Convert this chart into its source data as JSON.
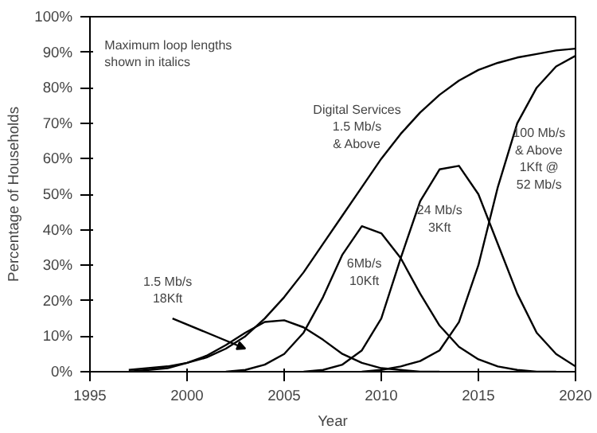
{
  "chart_data": {
    "type": "line",
    "xlabel": "Year",
    "ylabel": "Percentage of Households",
    "xlim": [
      1995,
      2020
    ],
    "ylim": [
      0,
      100
    ],
    "xticks": [
      1995,
      2000,
      2005,
      2010,
      2015,
      2020
    ],
    "yticks": [
      {
        "value": 0,
        "label": "0%"
      },
      {
        "value": 10,
        "label": "10%"
      },
      {
        "value": 20,
        "label": "20%"
      },
      {
        "value": 30,
        "label": "30%"
      },
      {
        "value": 40,
        "label": "40%"
      },
      {
        "value": 50,
        "label": "50%"
      },
      {
        "value": 60,
        "label": "60%"
      },
      {
        "value": 70,
        "label": "70%"
      },
      {
        "value": 80,
        "label": "80%"
      },
      {
        "value": 90,
        "label": "90%"
      },
      {
        "value": 100,
        "label": "100%"
      }
    ],
    "grid": false,
    "marker": "none",
    "line_style": "solid",
    "series": [
      {
        "color": "#000000",
        "x": [
          1997,
          1998,
          1999,
          2000,
          2001,
          2002,
          2003,
          2004,
          2005,
          2006,
          2007,
          2008,
          2009,
          2010,
          2011,
          2012,
          2013,
          2014,
          2015,
          2016,
          2017,
          2018,
          2019,
          2020
        ],
        "values": [
          0.5,
          1,
          1.5,
          2.5,
          4,
          6.5,
          10,
          15,
          21,
          28,
          36,
          44,
          52,
          60,
          67,
          73,
          78,
          82,
          85,
          87,
          88.5,
          89.5,
          90.5,
          91
        ]
      },
      {
        "color": "#000000",
        "x": [
          1997,
          1998,
          1999,
          2000,
          2001,
          2002,
          2003,
          2004,
          2005,
          2006,
          2007,
          2008,
          2009,
          2010,
          2011,
          2012,
          2013
        ],
        "values": [
          0,
          0.5,
          1,
          2.5,
          4.5,
          7.5,
          11,
          14,
          14.5,
          12.5,
          9,
          5,
          2.5,
          1,
          0.5,
          0,
          0
        ]
      },
      {
        "color": "#000000",
        "x": [
          2002,
          2003,
          2004,
          2005,
          2006,
          2007,
          2008,
          2009,
          2010,
          2011,
          2012,
          2013,
          2014,
          2015,
          2016,
          2017,
          2018,
          2019
        ],
        "values": [
          0,
          0.5,
          2,
          5,
          11,
          21,
          33,
          41,
          39,
          32,
          22,
          13,
          7,
          3.5,
          1.5,
          0.5,
          0,
          0
        ]
      },
      {
        "color": "#000000",
        "x": [
          2006,
          2007,
          2008,
          2009,
          2010,
          2011,
          2012,
          2013,
          2014,
          2015,
          2016,
          2017,
          2018,
          2019,
          2020
        ],
        "values": [
          0,
          0.5,
          2,
          6,
          15,
          32,
          48,
          57,
          58,
          50,
          36,
          22,
          11,
          5,
          1.5
        ]
      },
      {
        "color": "#000000",
        "x": [
          2009,
          2010,
          2011,
          2012,
          2013,
          2014,
          2015,
          2016,
          2017,
          2018,
          2019,
          2020
        ],
        "values": [
          0,
          0.5,
          1.5,
          3,
          6,
          14,
          30,
          52,
          70,
          80,
          86,
          89
        ]
      }
    ],
    "annotations": [
      "Maximum loop lengths\n shown in italics",
      "1.5 Mb/s\n18Kft",
      "Digital Services\n1.5 Mb/s\n& Above",
      "6Mb/s\n10Kft",
      "24 Mb/s\n3Kft",
      "100 Mb/s\n& Above\n1Kft @\n52 Mb/s"
    ]
  }
}
